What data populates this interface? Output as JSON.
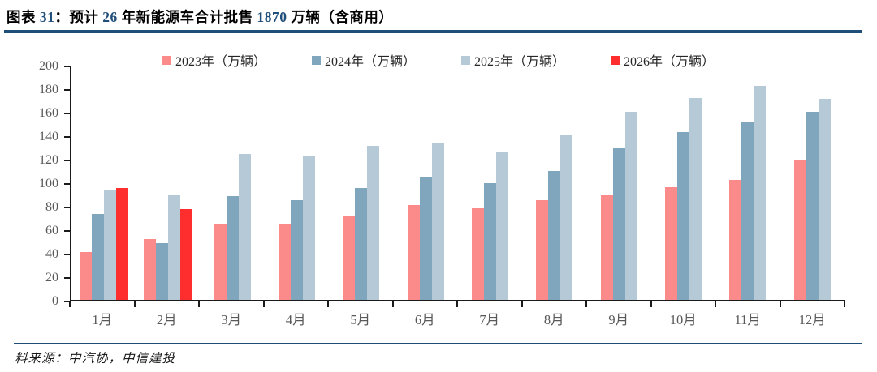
{
  "header": {
    "title_segments": [
      {
        "text": "图表 ",
        "navy": false
      },
      {
        "text": "31",
        "navy": true
      },
      {
        "text": "：预计 ",
        "navy": false
      },
      {
        "text": "26",
        "navy": true
      },
      {
        "text": " 年新能源车合计批售 ",
        "navy": false
      },
      {
        "text": "1870",
        "navy": true
      },
      {
        "text": " 万辆（含商用）",
        "navy": false
      }
    ],
    "accent_color": "#1F4E79"
  },
  "chart_data": {
    "type": "bar",
    "title": "预计26年新能源车合计批售1870万辆（含商用）",
    "categories": [
      "1月",
      "2月",
      "3月",
      "4月",
      "5月",
      "6月",
      "7月",
      "8月",
      "9月",
      "10月",
      "11月",
      "12月"
    ],
    "series": [
      {
        "name": "2023年（万辆）",
        "color": "#FB8A8A",
        "values": [
          41,
          52,
          65,
          64,
          72,
          81,
          78,
          85,
          90,
          96,
          102,
          119
        ]
      },
      {
        "name": "2024年（万辆）",
        "color": "#7FA6BD",
        "values": [
          73,
          48,
          88,
          85,
          95,
          105,
          99,
          110,
          129,
          143,
          151,
          160
        ]
      },
      {
        "name": "2025年（万辆）",
        "color": "#B5C9D7",
        "values": [
          94,
          89,
          124,
          122,
          131,
          133,
          126,
          140,
          160,
          172,
          182,
          171
        ]
      },
      {
        "name": "2026年（万辆）",
        "color": "#FE2E2E",
        "values": [
          95,
          77,
          null,
          null,
          null,
          null,
          null,
          null,
          null,
          null,
          null,
          null
        ]
      }
    ],
    "xlabel": "",
    "ylabel": "",
    "ylim": [
      0,
      200
    ],
    "ytick_step": 20,
    "grid": false,
    "legend_position": "top"
  },
  "footer": {
    "source_text": "料来源：中汽协，中信建投"
  }
}
